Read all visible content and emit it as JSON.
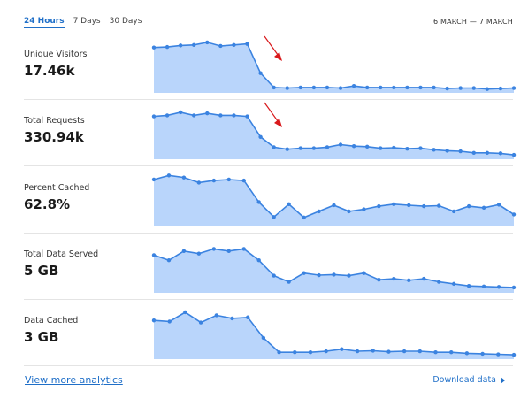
{
  "range_tabs": [
    {
      "label": "24 Hours",
      "active": true
    },
    {
      "label": "7 Days",
      "active": false
    },
    {
      "label": "30 Days",
      "active": false
    }
  ],
  "date_range": "6 MARCH — 7 MARCH",
  "colors": {
    "accent": "#1f6fc8",
    "area_fill": "#b9d5fb",
    "line": "#3b83e0",
    "arrow": "#d9191c"
  },
  "metrics": [
    {
      "label": "Unique Visitors",
      "value": "17.46k",
      "has_arrow": true,
      "points": [
        0.85,
        0.86,
        0.89,
        0.9,
        0.95,
        0.88,
        0.9,
        0.92,
        0.35,
        0.07,
        0.06,
        0.07,
        0.07,
        0.07,
        0.06,
        0.1,
        0.07,
        0.07,
        0.07,
        0.07,
        0.07,
        0.07,
        0.05,
        0.06,
        0.06,
        0.04,
        0.05,
        0.06
      ]
    },
    {
      "label": "Total Requests",
      "value": "330.94k",
      "has_arrow": true,
      "points": [
        0.8,
        0.82,
        0.88,
        0.82,
        0.86,
        0.82,
        0.82,
        0.8,
        0.4,
        0.2,
        0.16,
        0.18,
        0.18,
        0.2,
        0.25,
        0.22,
        0.21,
        0.18,
        0.19,
        0.17,
        0.18,
        0.15,
        0.13,
        0.12,
        0.09,
        0.09,
        0.08,
        0.05
      ]
    },
    {
      "label": "Percent Cached",
      "value": "62.8%",
      "has_arrow": false,
      "points": [
        0.88,
        0.96,
        0.92,
        0.82,
        0.86,
        0.88,
        0.86,
        0.44,
        0.15,
        0.4,
        0.14,
        0.26,
        0.38,
        0.26,
        0.3,
        0.36,
        0.4,
        0.38,
        0.36,
        0.37,
        0.26,
        0.36,
        0.33,
        0.39,
        0.2
      ]
    },
    {
      "label": "Total Data Served",
      "value": "5 GB",
      "has_arrow": false,
      "points": [
        0.7,
        0.6,
        0.78,
        0.73,
        0.82,
        0.78,
        0.82,
        0.6,
        0.3,
        0.18,
        0.35,
        0.31,
        0.32,
        0.3,
        0.35,
        0.22,
        0.24,
        0.21,
        0.24,
        0.18,
        0.14,
        0.1,
        0.09,
        0.08,
        0.07
      ]
    },
    {
      "label": "Data Cached",
      "value": "3 GB",
      "has_arrow": false,
      "points": [
        0.72,
        0.7,
        0.88,
        0.68,
        0.82,
        0.76,
        0.78,
        0.38,
        0.1,
        0.1,
        0.1,
        0.12,
        0.16,
        0.12,
        0.13,
        0.11,
        0.12,
        0.12,
        0.1,
        0.1,
        0.08,
        0.07,
        0.06,
        0.05
      ]
    }
  ],
  "footer": {
    "view_more": "View more analytics",
    "download": "Download data"
  }
}
